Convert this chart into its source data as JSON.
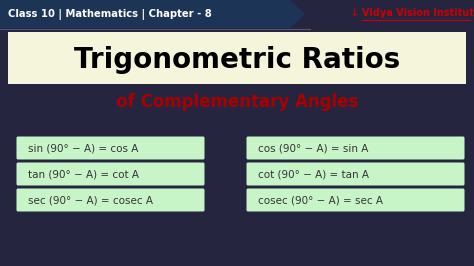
{
  "bg_color": "#1a1a2e",
  "bg_gradient_top": "#2c2c4a",
  "bg_gradient_bottom": "#1a1a2e",
  "header_bg": "#1c3557",
  "header_text": "Class 10 | Mathematics | Chapter - 8",
  "header_text_color": "#ffffff",
  "brand_text": "Vidya Vision Institute",
  "brand_icon": "↓",
  "brand_color": "#cc0000",
  "brand_underline": true,
  "divider_color": "#333355",
  "title_bg": "#f5f5dc",
  "title_line1": "Trigonometric Ratios",
  "title_line1_color": "#000000",
  "title_line2": "of Complementary Angles",
  "title_line2_color": "#aa0000",
  "formula_bg": "#c8f5c8",
  "formula_color": "#333333",
  "formulas_left": [
    "sin (90° − A) = cos A",
    "tan (90° − A) = cot A",
    "sec (90° − A) = cosec A"
  ],
  "formulas_right": [
    "cos (90° − A) = sin A",
    "cot (90° − A) = tan A",
    "cosec (90° − A) = sec A"
  ],
  "fig_width": 4.74,
  "fig_height": 2.66,
  "dpi": 100
}
